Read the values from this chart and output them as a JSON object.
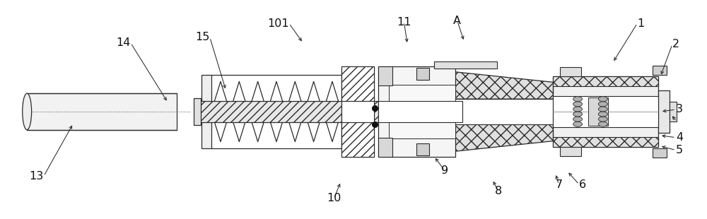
{
  "bg_color": "#ffffff",
  "line_color": "#2a2a2a",
  "figsize": [
    10.0,
    3.1
  ],
  "dpi": 100,
  "label_data": [
    [
      "13",
      58,
      250,
      100,
      175
    ],
    [
      "14",
      182,
      60,
      235,
      145
    ],
    [
      "15",
      295,
      52,
      318,
      128
    ],
    [
      "101",
      408,
      32,
      428,
      60
    ],
    [
      "11",
      572,
      30,
      577,
      62
    ],
    [
      "A",
      648,
      28,
      658,
      58
    ],
    [
      "1",
      905,
      32,
      870,
      88
    ],
    [
      "2",
      955,
      62,
      938,
      108
    ],
    [
      "3",
      960,
      155,
      938,
      158
    ],
    [
      "4",
      960,
      195,
      937,
      192
    ],
    [
      "5",
      960,
      213,
      937,
      207
    ],
    [
      "6",
      822,
      262,
      805,
      243
    ],
    [
      "7",
      793,
      262,
      788,
      246
    ],
    [
      "8",
      707,
      272,
      698,
      255
    ],
    [
      "9",
      630,
      242,
      615,
      222
    ],
    [
      "10",
      472,
      282,
      482,
      258
    ]
  ]
}
